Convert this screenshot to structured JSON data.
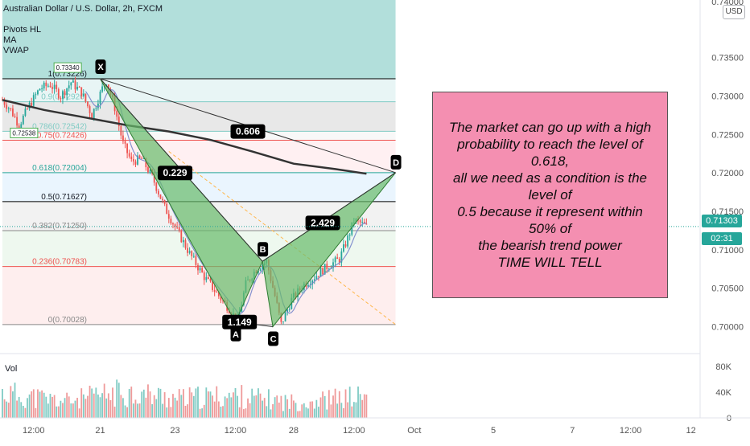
{
  "header": {
    "symbol_line": "Australian Dollar / U.S. Dollar, 2h, FXCM",
    "indicators": [
      "Pivots HL",
      "MA",
      "VWAP"
    ]
  },
  "price_axis": {
    "currency_badge": "USD",
    "current_price": "0.71303",
    "countdown": "02:31",
    "top_partial_label": "0.74000"
  },
  "volume_axis": {
    "label": "Vol",
    "ticks": [
      {
        "value": 80000,
        "label": "80K"
      },
      {
        "value": 40000,
        "label": "40K"
      },
      {
        "value": 0,
        "label": "0"
      }
    ]
  },
  "note": {
    "text": "The market can go up with a high\nprobability to reach the level of 0.618,\nall we need as a condition is the level of\n0.5 because it represent within 50% of\nthe bearish trend power\nTIME WILL TELL"
  },
  "colors": {
    "up": "#26a69a",
    "down": "#ef5350",
    "pattern_fill": "#66bb6a",
    "note_bg": "#f48fb1",
    "fib_top_zone": "#b2dfdb"
  },
  "chart_data": {
    "type": "candlestick",
    "y_axis": {
      "ylim": [
        0.6965,
        0.7425
      ],
      "ticks": [
        {
          "value": 0.735,
          "label": "0.73500"
        },
        {
          "value": 0.73,
          "label": "0.73000"
        },
        {
          "value": 0.725,
          "label": "0.72500"
        },
        {
          "value": 0.72,
          "label": "0.72000"
        },
        {
          "value": 0.715,
          "label": "0.71500"
        },
        {
          "value": 0.71,
          "label": "0.71000"
        },
        {
          "value": 0.705,
          "label": "0.70500"
        },
        {
          "value": 0.7,
          "label": "0.70000"
        }
      ]
    },
    "x_axis": {
      "ticks": [
        {
          "label": "12:00",
          "bar": 15
        },
        {
          "label": "21",
          "bar": 47
        },
        {
          "label": "23",
          "bar": 83
        },
        {
          "label": "12:00",
          "bar": 112
        },
        {
          "label": "28",
          "bar": 140
        },
        {
          "label": "12:00",
          "bar": 169
        },
        {
          "label": "Oct",
          "bar": 198
        },
        {
          "label": "5",
          "bar": 236
        },
        {
          "label": "7",
          "bar": 274
        },
        {
          "label": "12:00",
          "bar": 302
        },
        {
          "label": "12",
          "bar": 331
        }
      ]
    },
    "candles_keypoints": [
      {
        "bar": 0,
        "price": 0.7295
      },
      {
        "bar": 4,
        "price": 0.7282
      },
      {
        "bar": 8,
        "price": 0.7262
      },
      {
        "bar": 13,
        "price": 0.7288
      },
      {
        "bar": 18,
        "price": 0.731
      },
      {
        "bar": 23,
        "price": 0.7315
      },
      {
        "bar": 28,
        "price": 0.73
      },
      {
        "bar": 33,
        "price": 0.7318
      },
      {
        "bar": 38,
        "price": 0.7305
      },
      {
        "bar": 43,
        "price": 0.7275
      },
      {
        "bar": 48,
        "price": 0.731
      },
      {
        "bar": 50,
        "price": 0.732
      },
      {
        "bar": 54,
        "price": 0.7285
      },
      {
        "bar": 58,
        "price": 0.7238
      },
      {
        "bar": 62,
        "price": 0.7215
      },
      {
        "bar": 67,
        "price": 0.7218
      },
      {
        "bar": 72,
        "price": 0.7195
      },
      {
        "bar": 78,
        "price": 0.7155
      },
      {
        "bar": 84,
        "price": 0.7125
      },
      {
        "bar": 90,
        "price": 0.7095
      },
      {
        "bar": 97,
        "price": 0.7065
      },
      {
        "bar": 104,
        "price": 0.704
      },
      {
        "bar": 110,
        "price": 0.702
      },
      {
        "bar": 113,
        "price": 0.7006
      },
      {
        "bar": 117,
        "price": 0.7055
      },
      {
        "bar": 122,
        "price": 0.7075
      },
      {
        "bar": 127,
        "price": 0.7085
      },
      {
        "bar": 131,
        "price": 0.704
      },
      {
        "bar": 134,
        "price": 0.7003
      },
      {
        "bar": 139,
        "price": 0.7035
      },
      {
        "bar": 145,
        "price": 0.7055
      },
      {
        "bar": 150,
        "price": 0.7065
      },
      {
        "bar": 156,
        "price": 0.7078
      },
      {
        "bar": 162,
        "price": 0.7088
      },
      {
        "bar": 166,
        "price": 0.7115
      },
      {
        "bar": 169,
        "price": 0.7138
      },
      {
        "bar": 172,
        "price": 0.7135
      },
      {
        "bar": 175,
        "price": 0.713
      }
    ],
    "moving_average": [
      {
        "bar": 0,
        "price": 0.7295
      },
      {
        "bar": 20,
        "price": 0.7282
      },
      {
        "bar": 40,
        "price": 0.7272
      },
      {
        "bar": 60,
        "price": 0.7262
      },
      {
        "bar": 80,
        "price": 0.7254
      },
      {
        "bar": 100,
        "price": 0.7243
      },
      {
        "bar": 120,
        "price": 0.7228
      },
      {
        "bar": 140,
        "price": 0.7212
      },
      {
        "bar": 160,
        "price": 0.7205
      },
      {
        "bar": 175,
        "price": 0.7199
      }
    ],
    "volume": [
      {
        "bar": 0,
        "value": 45000
      },
      {
        "bar": 30,
        "value": 30000
      },
      {
        "bar": 58,
        "value": 47000
      },
      {
        "bar": 85,
        "value": 35000
      },
      {
        "bar": 112,
        "value": 40000
      },
      {
        "bar": 140,
        "value": 28000
      },
      {
        "bar": 170,
        "value": 38000
      }
    ],
    "fibonacci": {
      "levels": [
        {
          "ratio": 1,
          "price": 0.73226,
          "label": "1(0.73226)",
          "line_color": "#000000"
        },
        {
          "ratio": 0.886,
          "price": 0.72926,
          "label": "0.9(0.72926)",
          "line_color": "#80cbc4"
        },
        {
          "ratio": 0.786,
          "price": 0.72542,
          "label": "0.786(0.72542)",
          "line_color": "#80cbc4"
        },
        {
          "ratio": 0.75,
          "price": 0.72426,
          "label": "0.75(0.72426)",
          "line_color": "#ef5350"
        },
        {
          "ratio": 0.618,
          "price": 0.72004,
          "label": "0.618(0.72004)",
          "line_color": "#26a69a"
        },
        {
          "ratio": 0.5,
          "price": 0.71627,
          "label": "0.5(0.71627)",
          "line_color": "#000000"
        },
        {
          "ratio": 0.382,
          "price": 0.7125,
          "label": "0.382(0.71250)",
          "line_color": "#888888"
        },
        {
          "ratio": 0.236,
          "price": 0.70783,
          "label": "0.236(0.70783)",
          "line_color": "#ef5350"
        },
        {
          "ratio": 0,
          "price": 0.70028,
          "label": "0(0.70028)",
          "line_color": "#888888"
        }
      ],
      "start_bar": 0,
      "end_bar": 189
    },
    "pivot_labels": [
      {
        "bar": 10,
        "price": 0.7251,
        "text": "0.72538"
      },
      {
        "bar": 31,
        "price": 0.7336,
        "text": "0.73340"
      }
    ],
    "harmonic_pattern": {
      "points": [
        {
          "label": "X",
          "bar": 47,
          "price": 0.73226
        },
        {
          "label": "A",
          "bar": 112,
          "price": 0.7006
        },
        {
          "label": "B",
          "bar": 125,
          "price": 0.7085
        },
        {
          "label": "C",
          "bar": 130,
          "price": 0.7
        },
        {
          "label": "D",
          "bar": 189,
          "price": 0.72004
        }
      ],
      "ratios": [
        {
          "text": "0.606",
          "bar": 118,
          "price": 0.7254
        },
        {
          "text": "0.229",
          "bar": 83,
          "price": 0.72
        },
        {
          "text": "1.149",
          "bar": 114,
          "price": 0.7006
        },
        {
          "text": "2.429",
          "bar": 154,
          "price": 0.7135
        }
      ]
    },
    "vertical_zone": {
      "start_bar": 0,
      "end_bar": 189
    }
  }
}
